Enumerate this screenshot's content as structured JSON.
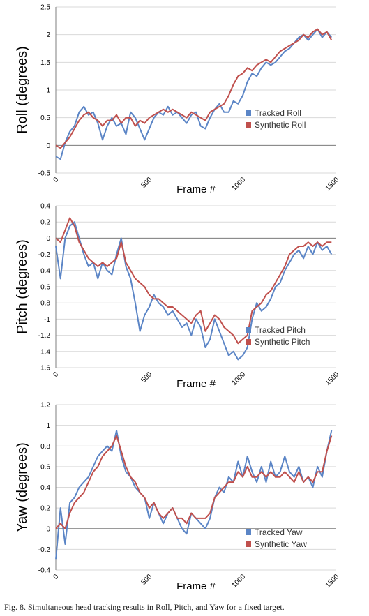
{
  "colors": {
    "tracked": "#5b85c6",
    "synthetic": "#c0504d",
    "grid": "#d9d9d9"
  },
  "caption": "Fig. 8.   Simultaneous head tracking results in Roll, Pitch, and Yaw for a fixed target.",
  "chart_data": [
    {
      "type": "line",
      "xlabel": "Frame #",
      "ylabel": "Roll (degrees)",
      "xlim": [
        0,
        1500
      ],
      "ylim": [
        -0.5,
        2.5
      ],
      "xticks": [
        "0",
        "500",
        "1000",
        "1500"
      ],
      "yticks": [
        "-0.5",
        "0",
        "0.5",
        "1",
        "1.5",
        "2",
        "2.5"
      ],
      "grid": true,
      "legend": "lower-right",
      "series": [
        {
          "name": "Tracked Roll",
          "x": [
            0,
            25,
            50,
            75,
            100,
            125,
            150,
            175,
            200,
            225,
            250,
            275,
            300,
            325,
            350,
            375,
            400,
            425,
            450,
            475,
            500,
            525,
            550,
            575,
            600,
            625,
            650,
            675,
            700,
            725,
            750,
            775,
            800,
            825,
            850,
            875,
            900,
            925,
            950,
            975,
            1000,
            1025,
            1050,
            1075,
            1100,
            1125,
            1150,
            1175,
            1200,
            1225,
            1250,
            1275,
            1300,
            1325,
            1350,
            1375,
            1400,
            1425,
            1450,
            1475
          ],
          "y": [
            -0.2,
            -0.25,
            0.05,
            0.25,
            0.35,
            0.6,
            0.7,
            0.55,
            0.6,
            0.4,
            0.1,
            0.35,
            0.5,
            0.35,
            0.4,
            0.2,
            0.6,
            0.5,
            0.3,
            0.1,
            0.3,
            0.5,
            0.6,
            0.55,
            0.7,
            0.55,
            0.6,
            0.5,
            0.4,
            0.55,
            0.6,
            0.35,
            0.3,
            0.5,
            0.65,
            0.75,
            0.6,
            0.6,
            0.8,
            0.75,
            0.9,
            1.15,
            1.3,
            1.25,
            1.4,
            1.5,
            1.45,
            1.5,
            1.6,
            1.7,
            1.75,
            1.85,
            1.95,
            2.0,
            1.9,
            2.0,
            2.1,
            1.95,
            2.05,
            1.95
          ]
        },
        {
          "name": "Synthetic Roll",
          "x": [
            0,
            25,
            50,
            75,
            100,
            125,
            150,
            175,
            200,
            225,
            250,
            275,
            300,
            325,
            350,
            375,
            400,
            425,
            450,
            475,
            500,
            525,
            550,
            575,
            600,
            625,
            650,
            675,
            700,
            725,
            750,
            775,
            800,
            825,
            850,
            875,
            900,
            925,
            950,
            975,
            1000,
            1025,
            1050,
            1075,
            1100,
            1125,
            1150,
            1175,
            1200,
            1225,
            1250,
            1275,
            1300,
            1325,
            1350,
            1375,
            1400,
            1425,
            1450,
            1475
          ],
          "y": [
            0.0,
            -0.05,
            0.05,
            0.15,
            0.3,
            0.45,
            0.55,
            0.6,
            0.5,
            0.45,
            0.35,
            0.45,
            0.45,
            0.55,
            0.4,
            0.5,
            0.5,
            0.35,
            0.45,
            0.4,
            0.5,
            0.55,
            0.6,
            0.65,
            0.6,
            0.65,
            0.6,
            0.55,
            0.5,
            0.6,
            0.55,
            0.5,
            0.45,
            0.6,
            0.65,
            0.7,
            0.75,
            0.9,
            1.1,
            1.25,
            1.3,
            1.4,
            1.35,
            1.45,
            1.5,
            1.55,
            1.5,
            1.6,
            1.7,
            1.75,
            1.8,
            1.85,
            1.9,
            2.0,
            1.95,
            2.05,
            2.1,
            2.0,
            2.05,
            1.9
          ]
        }
      ]
    },
    {
      "type": "line",
      "xlabel": "Frame #",
      "ylabel": "Pitch (degrees)",
      "xlim": [
        0,
        1500
      ],
      "ylim": [
        -1.6,
        0.4
      ],
      "xticks": [
        "0",
        "500",
        "1000",
        "1500"
      ],
      "yticks": [
        "-1.6",
        "-1.4",
        "-1.2",
        "-1",
        "-0.8",
        "-0.6",
        "-0.4",
        "-0.2",
        "0",
        "0.2",
        "0.4"
      ],
      "grid": true,
      "legend": "lower-right",
      "series": [
        {
          "name": "Tracked Pitch",
          "x": [
            0,
            25,
            50,
            75,
            100,
            125,
            150,
            175,
            200,
            225,
            250,
            275,
            300,
            325,
            350,
            375,
            400,
            425,
            450,
            475,
            500,
            525,
            550,
            575,
            600,
            625,
            650,
            675,
            700,
            725,
            750,
            775,
            800,
            825,
            850,
            875,
            900,
            925,
            950,
            975,
            1000,
            1025,
            1050,
            1075,
            1100,
            1125,
            1150,
            1175,
            1200,
            1225,
            1250,
            1275,
            1300,
            1325,
            1350,
            1375,
            1400,
            1425,
            1450,
            1475
          ],
          "y": [
            -0.1,
            -0.5,
            0.0,
            0.15,
            0.2,
            0.0,
            -0.2,
            -0.35,
            -0.3,
            -0.5,
            -0.3,
            -0.4,
            -0.45,
            -0.2,
            0.0,
            -0.35,
            -0.5,
            -0.8,
            -1.15,
            -0.95,
            -0.85,
            -0.7,
            -0.8,
            -0.85,
            -0.95,
            -0.9,
            -1.0,
            -1.1,
            -1.05,
            -1.2,
            -1.0,
            -1.1,
            -1.35,
            -1.25,
            -1.0,
            -1.15,
            -1.3,
            -1.45,
            -1.4,
            -1.5,
            -1.45,
            -1.35,
            -1.0,
            -0.8,
            -0.9,
            -0.85,
            -0.75,
            -0.6,
            -0.55,
            -0.4,
            -0.3,
            -0.2,
            -0.15,
            -0.25,
            -0.1,
            -0.2,
            -0.05,
            -0.15,
            -0.1,
            -0.2
          ]
        },
        {
          "name": "Synthetic Pitch",
          "x": [
            0,
            25,
            50,
            75,
            100,
            125,
            150,
            175,
            200,
            225,
            250,
            275,
            300,
            325,
            350,
            375,
            400,
            425,
            450,
            475,
            500,
            525,
            550,
            575,
            600,
            625,
            650,
            675,
            700,
            725,
            750,
            775,
            800,
            825,
            850,
            875,
            900,
            925,
            950,
            975,
            1000,
            1025,
            1050,
            1075,
            1100,
            1125,
            1150,
            1175,
            1200,
            1225,
            1250,
            1275,
            1300,
            1325,
            1350,
            1375,
            1400,
            1425,
            1450,
            1475
          ],
          "y": [
            0.0,
            -0.05,
            0.1,
            0.25,
            0.15,
            -0.05,
            -0.15,
            -0.25,
            -0.3,
            -0.35,
            -0.3,
            -0.35,
            -0.3,
            -0.25,
            -0.05,
            -0.3,
            -0.4,
            -0.5,
            -0.55,
            -0.6,
            -0.7,
            -0.75,
            -0.75,
            -0.8,
            -0.85,
            -0.85,
            -0.9,
            -0.95,
            -1.0,
            -1.05,
            -0.95,
            -0.9,
            -1.15,
            -1.05,
            -0.95,
            -1.0,
            -1.1,
            -1.15,
            -1.2,
            -1.3,
            -1.25,
            -1.2,
            -0.9,
            -0.85,
            -0.8,
            -0.7,
            -0.65,
            -0.55,
            -0.45,
            -0.35,
            -0.2,
            -0.15,
            -0.1,
            -0.1,
            -0.05,
            -0.1,
            -0.05,
            -0.1,
            -0.05,
            -0.05
          ]
        }
      ]
    },
    {
      "type": "line",
      "xlabel": "Frame #",
      "ylabel": "Yaw (degrees)",
      "xlim": [
        0,
        1500
      ],
      "ylim": [
        -0.4,
        1.2
      ],
      "xticks": [
        "0",
        "500",
        "1000",
        "1500"
      ],
      "yticks": [
        "-0.4",
        "-0.2",
        "0",
        "0.2",
        "0.4",
        "0.6",
        "0.8",
        "1",
        "1.2"
      ],
      "grid": true,
      "legend": "lower-right",
      "series": [
        {
          "name": "Tracked Yaw",
          "x": [
            0,
            25,
            50,
            75,
            100,
            125,
            150,
            175,
            200,
            225,
            250,
            275,
            300,
            325,
            350,
            375,
            400,
            425,
            450,
            475,
            500,
            525,
            550,
            575,
            600,
            625,
            650,
            675,
            700,
            725,
            750,
            775,
            800,
            825,
            850,
            875,
            900,
            925,
            950,
            975,
            1000,
            1025,
            1050,
            1075,
            1100,
            1125,
            1150,
            1175,
            1200,
            1225,
            1250,
            1275,
            1300,
            1325,
            1350,
            1375,
            1400,
            1425,
            1450,
            1475
          ],
          "y": [
            -0.3,
            0.2,
            -0.15,
            0.25,
            0.3,
            0.4,
            0.45,
            0.5,
            0.6,
            0.7,
            0.75,
            0.8,
            0.75,
            0.95,
            0.7,
            0.55,
            0.5,
            0.4,
            0.35,
            0.3,
            0.1,
            0.25,
            0.15,
            0.05,
            0.15,
            0.2,
            0.1,
            0.0,
            -0.05,
            0.15,
            0.1,
            0.05,
            0.0,
            0.1,
            0.3,
            0.4,
            0.35,
            0.5,
            0.45,
            0.65,
            0.5,
            0.7,
            0.55,
            0.45,
            0.6,
            0.45,
            0.65,
            0.5,
            0.55,
            0.7,
            0.55,
            0.5,
            0.6,
            0.45,
            0.5,
            0.4,
            0.6,
            0.5,
            0.75,
            0.95
          ]
        },
        {
          "name": "Synthetic Yaw",
          "x": [
            0,
            25,
            50,
            75,
            100,
            125,
            150,
            175,
            200,
            225,
            250,
            275,
            300,
            325,
            350,
            375,
            400,
            425,
            450,
            475,
            500,
            525,
            550,
            575,
            600,
            625,
            650,
            675,
            700,
            725,
            750,
            775,
            800,
            825,
            850,
            875,
            900,
            925,
            950,
            975,
            1000,
            1025,
            1050,
            1075,
            1100,
            1125,
            1150,
            1175,
            1200,
            1225,
            1250,
            1275,
            1300,
            1325,
            1350,
            1375,
            1400,
            1425,
            1450,
            1475
          ],
          "y": [
            0.0,
            0.05,
            0.0,
            0.15,
            0.25,
            0.3,
            0.35,
            0.45,
            0.55,
            0.6,
            0.7,
            0.75,
            0.8,
            0.9,
            0.75,
            0.6,
            0.5,
            0.45,
            0.35,
            0.3,
            0.2,
            0.25,
            0.15,
            0.1,
            0.15,
            0.2,
            0.1,
            0.1,
            0.05,
            0.15,
            0.1,
            0.1,
            0.1,
            0.15,
            0.3,
            0.35,
            0.4,
            0.45,
            0.45,
            0.55,
            0.5,
            0.6,
            0.5,
            0.5,
            0.55,
            0.5,
            0.55,
            0.5,
            0.5,
            0.55,
            0.5,
            0.45,
            0.55,
            0.45,
            0.5,
            0.45,
            0.55,
            0.55,
            0.75,
            0.9
          ]
        }
      ]
    }
  ]
}
